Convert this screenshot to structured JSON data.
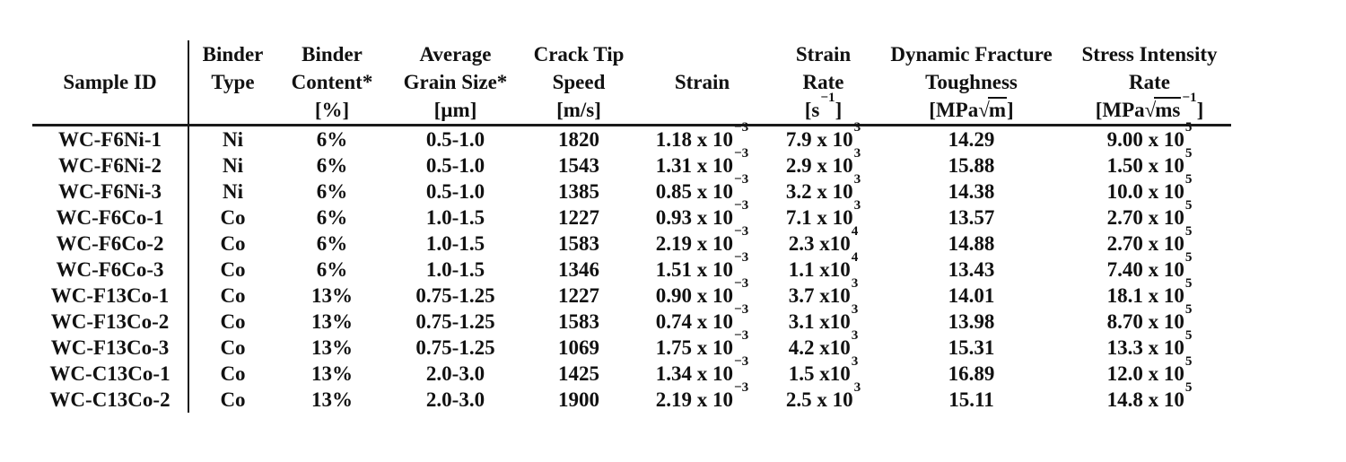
{
  "meta": {
    "page_background": "#ffffff",
    "ink": "#111111"
  },
  "table": {
    "columns": [
      {
        "id": "sample_id",
        "name": "Sample ID",
        "header_lines": [
          "",
          "Sample ID",
          ""
        ]
      },
      {
        "id": "binder_type",
        "name": "Binder Type",
        "header_lines": [
          "Binder",
          "Type",
          ""
        ]
      },
      {
        "id": "binder_content",
        "name": "Binder Content [%]",
        "header_lines": [
          "Binder",
          "Content*",
          "[%]"
        ]
      },
      {
        "id": "grain_size",
        "name": "Average Grain Size [um]",
        "header_lines": [
          "Average",
          "Grain Size*",
          "[µm]"
        ]
      },
      {
        "id": "crack_tip_speed",
        "name": "Crack Tip Speed [m/s]",
        "header_lines": [
          "Crack Tip",
          "Speed",
          "[m/s]"
        ]
      },
      {
        "id": "strain",
        "name": "Strain",
        "header_lines": [
          "",
          "Strain",
          ""
        ]
      },
      {
        "id": "strain_rate",
        "name": "Strain Rate [1/s]",
        "header_lines": [
          "Strain",
          "Rate",
          "[s^{−1}]"
        ]
      },
      {
        "id": "toughness",
        "name": "Dynamic Fracture Toughness",
        "header_lines": [
          "Dynamic Fracture",
          "Toughness",
          "[MPa√{m}]"
        ]
      },
      {
        "id": "sir",
        "name": "Stress Intensity Rate",
        "header_lines": [
          "Stress Intensity",
          "Rate",
          "[MPa√{ms}^{−1}]"
        ]
      }
    ],
    "rows": [
      [
        "WC-F6Ni-1",
        "Ni",
        "6%",
        "0.5-1.0",
        "1820",
        "1.18 x 10^{−3}",
        "7.9 x 10^{3}",
        "14.29",
        "9.00 x 10^{5}"
      ],
      [
        "WC-F6Ni-2",
        "Ni",
        "6%",
        "0.5-1.0",
        "1543",
        "1.31 x 10^{−3}",
        "2.9 x 10^{3}",
        "15.88",
        "1.50 x 10^{5}"
      ],
      [
        "WC-F6Ni-3",
        "Ni",
        "6%",
        "0.5-1.0",
        "1385",
        "0.85 x 10^{−3}",
        "3.2 x 10^{3}",
        "14.38",
        "10.0 x 10^{5}"
      ],
      [
        "WC-F6Co-1",
        "Co",
        "6%",
        "1.0-1.5",
        "1227",
        "0.93 x 10^{−3}",
        "7.1 x 10^{3}",
        "13.57",
        "2.70 x 10^{5}"
      ],
      [
        "WC-F6Co-2",
        "Co",
        "6%",
        "1.0-1.5",
        "1583",
        "2.19 x 10^{−3}",
        "2.3 x10^{4}",
        "14.88",
        "2.70 x 10^{5}"
      ],
      [
        "WC-F6Co-3",
        "Co",
        "6%",
        "1.0-1.5",
        "1346",
        "1.51 x 10^{−3}",
        "1.1 x10^{4}",
        "13.43",
        "7.40 x 10^{5}"
      ],
      [
        "WC-F13Co-1",
        "Co",
        "13%",
        "0.75-1.25",
        "1227",
        "0.90 x 10^{−3}",
        "3.7 x10^{3}",
        "14.01",
        "18.1 x 10^{5}"
      ],
      [
        "WC-F13Co-2",
        "Co",
        "13%",
        "0.75-1.25",
        "1583",
        "0.74 x 10^{−3}",
        "3.1 x10^{3}",
        "13.98",
        "8.70 x 10^{5}"
      ],
      [
        "WC-F13Co-3",
        "Co",
        "13%",
        "0.75-1.25",
        "1069",
        "1.75 x 10^{−3}",
        "4.2 x10^{3}",
        "15.31",
        "13.3 x 10^{5}"
      ],
      [
        "WC-C13Co-1",
        "Co",
        "13%",
        "2.0-3.0",
        "1425",
        "1.34 x 10^{−3}",
        "1.5 x10^{3}",
        "16.89",
        "12.0 x 10^{5}"
      ],
      [
        "WC-C13Co-2",
        "Co",
        "13%",
        "2.0-3.0",
        "1900",
        "2.19 x 10^{−3}",
        "2.5 x 10^{3}",
        "15.11",
        "14.8 x 10^{5}"
      ]
    ]
  }
}
